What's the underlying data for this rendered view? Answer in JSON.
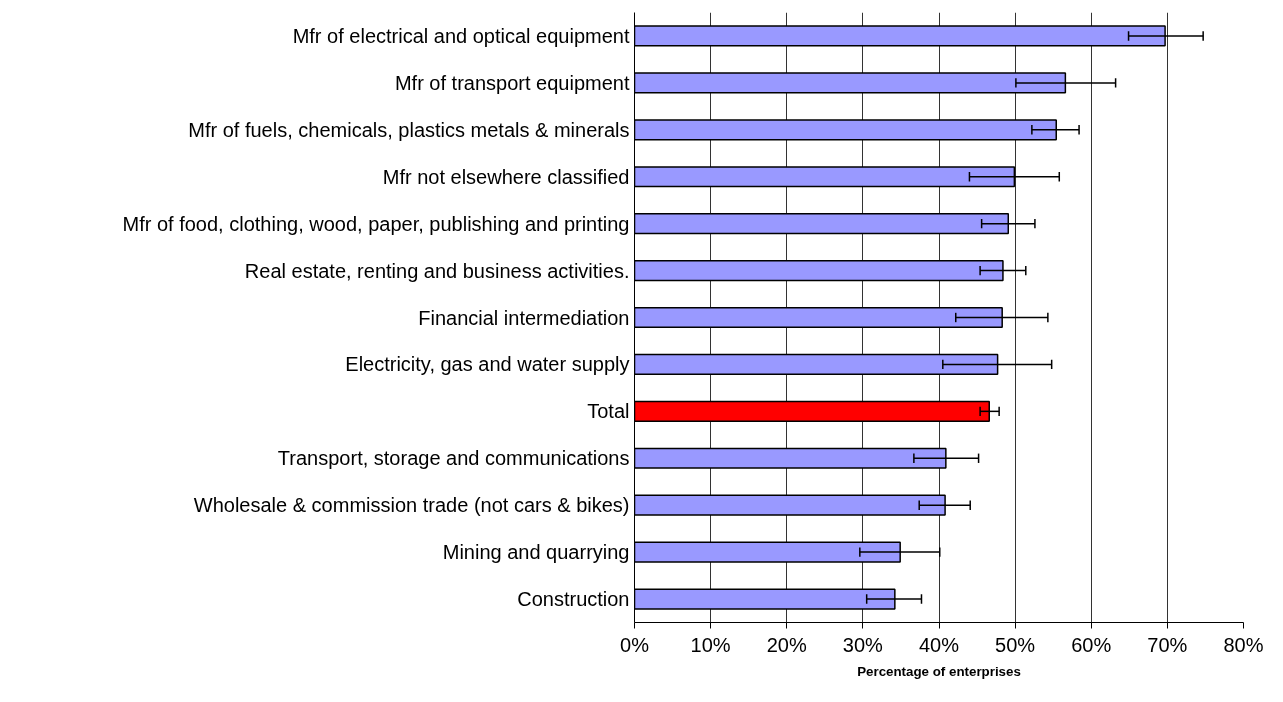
{
  "chart_data": {
    "type": "bar",
    "orientation": "horizontal",
    "xlabel": "Percentage of enterprises",
    "categories": [
      "Mfr of electrical and optical equipment",
      "Mfr of transport equipment",
      "Mfr of fuels, chemicals, plastics metals & minerals",
      "Mfr not elsewhere classified",
      "Mfr of food, clothing, wood, paper, publishing and printing",
      "Real estate, renting and business activities.",
      "Financial intermediation",
      "Electricity, gas and water supply",
      "Total",
      "Transport, storage and communications",
      "Wholesale & commission trade (not cars & bikes)",
      "Mining and quarrying",
      "Construction"
    ],
    "values": [
      69.7,
      56.6,
      55.4,
      49.9,
      49.1,
      48.4,
      48.3,
      47.7,
      46.6,
      40.9,
      40.8,
      34.9,
      34.2
    ],
    "colors": [
      "#9999ff",
      "#9999ff",
      "#9999ff",
      "#9999ff",
      "#9999ff",
      "#9999ff",
      "#9999ff",
      "#9999ff",
      "#ff0000",
      "#9999ff",
      "#9999ff",
      "#9999ff",
      "#9999ff"
    ],
    "errors": [
      [
        64.9,
        74.7
      ],
      [
        50.1,
        63.2
      ],
      [
        52.2,
        58.4
      ],
      [
        44.0,
        55.8
      ],
      [
        45.6,
        52.6
      ],
      [
        45.4,
        51.4
      ],
      [
        42.2,
        54.3
      ],
      [
        40.5,
        54.8
      ],
      [
        45.4,
        47.9
      ],
      [
        36.7,
        45.2
      ],
      [
        37.4,
        44.1
      ],
      [
        29.6,
        40.1
      ],
      [
        30.5,
        37.7
      ]
    ],
    "xlim": [
      0,
      80
    ],
    "xticks": [
      {
        "value": 0,
        "label": "0%"
      },
      {
        "value": 10,
        "label": "10%"
      },
      {
        "value": 20,
        "label": "20%"
      },
      {
        "value": 30,
        "label": "30%"
      },
      {
        "value": 40,
        "label": "40%"
      },
      {
        "value": 50,
        "label": "50%"
      },
      {
        "value": 60,
        "label": "60%"
      },
      {
        "value": 70,
        "label": "70%"
      },
      {
        "value": 80,
        "label": "80%"
      }
    ],
    "grid": "x"
  }
}
